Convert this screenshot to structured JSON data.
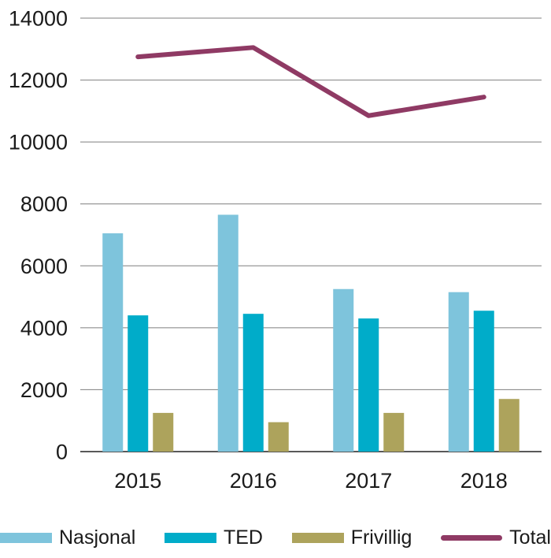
{
  "chart_data": {
    "type": "bar+line",
    "title": "",
    "xlabel": "",
    "ylabel": "",
    "categories": [
      "2015",
      "2016",
      "2017",
      "2018"
    ],
    "bar_series": [
      {
        "name": "Nasjonal",
        "color": "#7EC4DC",
        "values": [
          7050,
          7650,
          5250,
          5150
        ]
      },
      {
        "name": "TED",
        "color": "#00ACC9",
        "values": [
          4400,
          4450,
          4300,
          4550
        ]
      },
      {
        "name": "Frivillig",
        "color": "#ADA35C",
        "values": [
          1250,
          950,
          1250,
          1700
        ]
      }
    ],
    "line_series": [
      {
        "name": "Total",
        "color": "#8F3A64",
        "values": [
          12750,
          13050,
          10850,
          11450
        ]
      }
    ],
    "ylim": [
      0,
      14000
    ],
    "ytick_step": 2000,
    "yticks": [
      "14000",
      "12000",
      "10000",
      "8000",
      "6000",
      "4000",
      "2000",
      "0"
    ],
    "grid": true,
    "legend_position": "bottom"
  },
  "legend": {
    "items": [
      {
        "label": "Nasjonal",
        "type": "rect",
        "color": "#7EC4DC"
      },
      {
        "label": "TED",
        "type": "rect",
        "color": "#00ACC9"
      },
      {
        "label": "Frivillig",
        "type": "rect",
        "color": "#ADA35C"
      },
      {
        "label": "Total",
        "type": "line",
        "color": "#8F3A64"
      }
    ]
  },
  "colors": {
    "background": "#FFFFFF",
    "gridline": "#7F7F7F",
    "axis_line": "#595959",
    "text": "#1A1A1A"
  }
}
